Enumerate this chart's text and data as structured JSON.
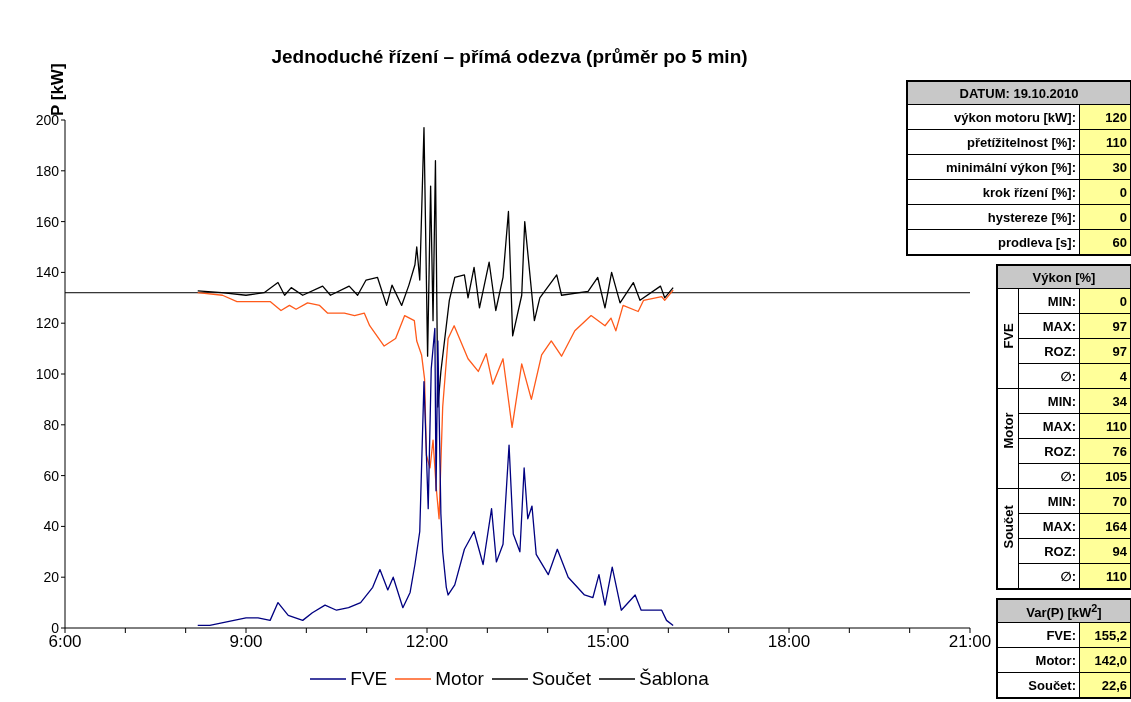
{
  "chart_data": [
    {
      "type": "line",
      "title": "Jednoduché řízení – přímá odezva (průměr po 5 min)",
      "ylabel": "P [kW]",
      "xlim": [
        6,
        21
      ],
      "ylim": [
        0,
        200
      ],
      "xticks": [
        {
          "value": 6,
          "label": "6:00"
        },
        {
          "value": 7,
          "label": null
        },
        {
          "value": 8,
          "label": null
        },
        {
          "value": 9,
          "label": "9:00"
        },
        {
          "value": 10,
          "label": null
        },
        {
          "value": 11,
          "label": null
        },
        {
          "value": 12,
          "label": "12:00"
        },
        {
          "value": 13,
          "label": null
        },
        {
          "value": 14,
          "label": null
        },
        {
          "value": 15,
          "label": "15:00"
        },
        {
          "value": 16,
          "label": null
        },
        {
          "value": 17,
          "label": null
        },
        {
          "value": 18,
          "label": "18:00"
        },
        {
          "value": 19,
          "label": null
        },
        {
          "value": 20,
          "label": null
        },
        {
          "value": 21,
          "label": "21:00"
        }
      ],
      "yticks": [
        0,
        20,
        40,
        60,
        80,
        100,
        120,
        140,
        160,
        180,
        200
      ],
      "legend": "bottom",
      "marker": "none",
      "series": [
        {
          "name": "FVE",
          "color": "#000080",
          "x": [
            8.2,
            8.4,
            8.6,
            8.8,
            9.0,
            9.2,
            9.4,
            9.53,
            9.7,
            9.94,
            10.1,
            10.31,
            10.5,
            10.7,
            10.9,
            11.1,
            11.22,
            11.35,
            11.44,
            11.6,
            11.72,
            11.8,
            11.88,
            11.95,
            12.02,
            12.07,
            12.13,
            12.15,
            12.18,
            12.23,
            12.26,
            12.32,
            12.35,
            12.46,
            12.62,
            12.78,
            12.93,
            13.07,
            13.15,
            13.26,
            13.36,
            13.43,
            13.54,
            13.61,
            13.67,
            13.74,
            13.81,
            14.01,
            14.16,
            14.34,
            14.61,
            14.75,
            14.85,
            14.95,
            15.07,
            15.22,
            15.45,
            15.55,
            15.89,
            15.97,
            16.08
          ],
          "values": [
            1,
            1,
            2,
            3,
            4,
            4,
            3,
            10,
            5,
            3,
            6,
            9,
            7,
            8,
            10,
            16,
            23,
            15,
            20,
            8,
            14,
            25,
            38,
            97,
            47,
            102,
            118,
            54,
            113,
            45,
            30,
            16,
            13,
            17,
            31,
            38,
            25,
            47,
            26,
            33,
            72,
            37,
            30,
            63,
            43,
            48,
            29,
            21,
            31,
            20,
            13,
            12,
            21,
            9,
            24,
            7,
            13,
            7,
            7,
            3,
            1
          ]
        },
        {
          "name": "Motor",
          "color": "#ff5a1a",
          "x": [
            8.2,
            8.61,
            8.85,
            9.4,
            9.58,
            9.72,
            9.83,
            10.02,
            10.22,
            10.35,
            10.63,
            10.8,
            10.96,
            11.05,
            11.29,
            11.48,
            11.63,
            11.79,
            11.83,
            11.91,
            11.96,
            11.99,
            12.05,
            12.1,
            12.15,
            12.2,
            12.26,
            12.35,
            12.45,
            12.68,
            12.85,
            12.98,
            13.09,
            13.26,
            13.41,
            13.57,
            13.73,
            13.9,
            14.06,
            14.23,
            14.45,
            14.72,
            14.95,
            15.05,
            15.13,
            15.25,
            15.5,
            15.59,
            15.89,
            15.94,
            16.08
          ],
          "values": [
            132,
            131,
            128.5,
            128.5,
            125,
            127,
            125.5,
            128,
            127,
            124,
            124,
            123,
            124,
            119,
            111,
            114,
            123,
            121,
            113,
            107.5,
            98,
            68,
            63,
            74,
            56,
            43,
            87,
            114,
            119,
            106,
            101,
            108,
            96,
            106,
            79,
            104,
            90,
            107.5,
            113,
            107,
            117,
            123,
            119,
            122,
            117,
            127,
            124.6,
            129,
            130.5,
            129,
            133
          ]
        },
        {
          "name": "Součet",
          "color": "#000000",
          "x": [
            8.2,
            8.6,
            9.0,
            9.3,
            9.53,
            9.64,
            9.75,
            9.94,
            10.27,
            10.4,
            10.71,
            10.85,
            10.99,
            11.18,
            11.33,
            11.42,
            11.58,
            11.7,
            11.8,
            11.83,
            11.88,
            11.95,
            12.01,
            12.06,
            12.1,
            12.14,
            12.18,
            12.23,
            12.37,
            12.46,
            12.62,
            12.68,
            12.78,
            12.87,
            13.03,
            13.14,
            13.26,
            13.35,
            13.42,
            13.57,
            13.62,
            13.78,
            13.87,
            14.15,
            14.23,
            14.67,
            14.83,
            14.95,
            15.06,
            15.2,
            15.42,
            15.53,
            15.87,
            15.94,
            16.08
          ],
          "values": [
            132.7,
            132,
            131,
            132,
            136,
            131,
            134,
            131,
            134.6,
            131,
            134.6,
            131,
            137,
            138,
            127,
            135,
            127,
            135,
            143,
            150,
            137,
            197,
            107,
            174,
            121,
            184,
            87,
            101,
            129,
            138,
            139,
            130,
            142,
            126,
            144,
            125,
            138,
            164,
            115,
            131,
            160,
            121,
            130,
            139,
            131,
            132.5,
            138,
            126,
            140,
            128,
            136,
            129,
            134.6,
            130,
            134
          ]
        },
        {
          "name": "Šablona",
          "color": "#000000",
          "x": [
            6,
            21
          ],
          "values": [
            132,
            132
          ]
        }
      ]
    },
    {
      "type": "other",
      "annotations": [
        "DATUM: 19.10.2010",
        "výkon motoru [kW]:",
        "120",
        "přetížitelnost [%]:",
        "110",
        "minimální výkon [%]:",
        "30",
        "krok řízení [%]:",
        "0",
        "hystereze [%]:",
        "0",
        "prodleva [s]:",
        "60",
        "Výkon [%]",
        "FVE",
        "MIN:",
        "0",
        "MAX:",
        "97",
        "ROZ:",
        "97",
        "∅:",
        "4",
        "Motor",
        "MIN:",
        "34",
        "MAX:",
        "110",
        "ROZ:",
        "76",
        "∅:",
        "105",
        "Součet",
        "MIN:",
        "70",
        "MAX:",
        "164",
        "ROZ:",
        "94",
        "∅:",
        "110",
        "Var(P) [kW$^{2}$]",
        "FVE:",
        "155,2",
        "Motor:",
        "142,0",
        "Součet:",
        "22,6"
      ]
    }
  ]
}
